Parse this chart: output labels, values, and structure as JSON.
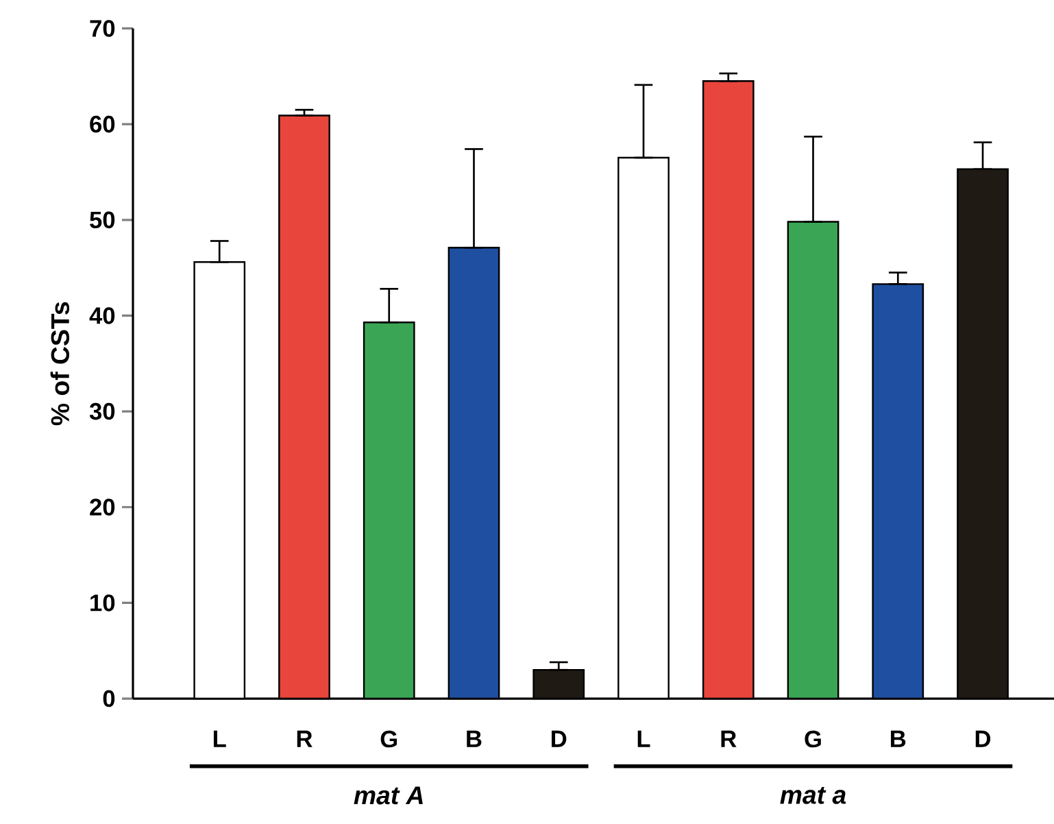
{
  "chart_data": {
    "type": "bar",
    "ylabel": "% of CSTs",
    "categories": [
      "L",
      "R",
      "G",
      "B",
      "D",
      "L",
      "R",
      "G",
      "B",
      "D"
    ],
    "values": [
      45.6,
      60.9,
      39.3,
      47.1,
      3.0,
      56.5,
      64.5,
      49.8,
      43.3,
      55.3
    ],
    "errors": [
      [
        45.6,
        47.8
      ],
      [
        60.9,
        61.5
      ],
      [
        39.3,
        42.8
      ],
      [
        47.1,
        57.4
      ],
      [
        3.0,
        3.8
      ],
      [
        56.5,
        64.1
      ],
      [
        64.5,
        65.3
      ],
      [
        49.8,
        58.7
      ],
      [
        43.3,
        44.5
      ],
      [
        55.3,
        58.1
      ]
    ],
    "colors": [
      "#ffffff",
      "#e8453c",
      "#3aa655",
      "#1f4fa0",
      "#1f1a14",
      "#ffffff",
      "#e8453c",
      "#3aa655",
      "#1f4fa0",
      "#1f1a14"
    ],
    "ylim": [
      0,
      70
    ],
    "yticks": [
      0,
      10,
      20,
      30,
      40,
      50,
      60,
      70
    ],
    "annotations": [
      "mat A",
      "mat a"
    ]
  }
}
